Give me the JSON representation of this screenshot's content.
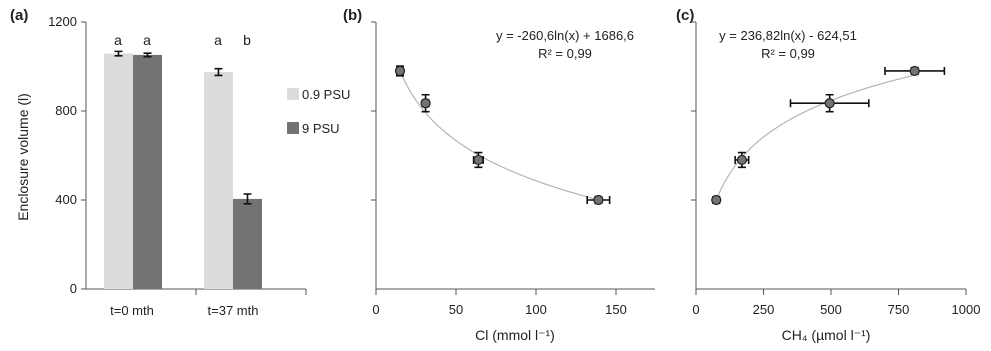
{
  "chart_data": [
    {
      "type": "bar",
      "panel_label": "(a)",
      "ylabel": "Enclosure volume (l)",
      "ylim": [
        0,
        1200
      ],
      "yticks": [
        "0",
        "400",
        "800",
        "1200"
      ],
      "categories": [
        "t=0 mth",
        "t=37 mth"
      ],
      "series": [
        {
          "name": "0.9 PSU",
          "color": "#dcdcdc",
          "values": [
            1058,
            975
          ],
          "errors": [
            10,
            15
          ]
        },
        {
          "name": "9 PSU",
          "color": "#737373",
          "values": [
            1052,
            405
          ],
          "errors": [
            8,
            22
          ]
        }
      ],
      "significance_letters": [
        [
          "a",
          "a"
        ],
        [
          "a",
          "b"
        ]
      ],
      "legend_placement": "right"
    },
    {
      "type": "scatter",
      "panel_label": "(b)",
      "xlabel": "Cl (mmol l⁻¹)",
      "xlim": [
        0,
        175
      ],
      "xticks": [
        "0",
        "50",
        "100",
        "150"
      ],
      "ylim": [
        0,
        1200
      ],
      "points": [
        {
          "x": 15,
          "y": 980,
          "xerr": 2,
          "yerr": 22
        },
        {
          "x": 31,
          "y": 835,
          "xerr": 2,
          "yerr": 38
        },
        {
          "x": 64,
          "y": 580,
          "xerr": 3,
          "yerr": 33
        },
        {
          "x": 139,
          "y": 400,
          "xerr": 7,
          "yerr": 15
        }
      ],
      "fit": {
        "a": -260.6,
        "b": 1686.6,
        "x_range": [
          15,
          139
        ]
      },
      "equation": "y = -260,6ln(x) + 1686,6",
      "r2": "R² = 0,99",
      "marker_color": "#737373"
    },
    {
      "type": "scatter",
      "panel_label": "(c)",
      "xlabel": "CH₄ (µmol l⁻¹)",
      "xlim": [
        0,
        1000
      ],
      "xticks": [
        "0",
        "250",
        "500",
        "750",
        "1000"
      ],
      "ylim": [
        0,
        1200
      ],
      "points": [
        {
          "x": 75,
          "y": 400,
          "xerr": 10,
          "yerr": 15
        },
        {
          "x": 170,
          "y": 580,
          "xerr": 25,
          "yerr": 33
        },
        {
          "x": 495,
          "y": 835,
          "xerr": 145,
          "yerr": 38
        },
        {
          "x": 810,
          "y": 980,
          "xerr": 110,
          "yerr": 15
        }
      ],
      "fit": {
        "a": 236.82,
        "b": -624.51,
        "x_range": [
          75,
          810
        ]
      },
      "equation": "y = 236,82ln(x) - 624,51",
      "r2": "R² = 0,99",
      "marker_color": "#737373"
    }
  ]
}
